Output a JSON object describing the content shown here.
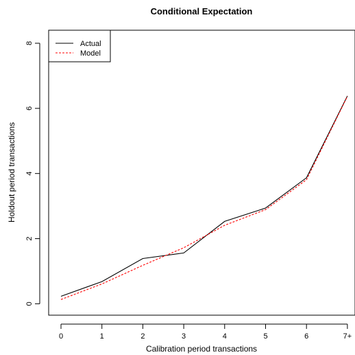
{
  "chart_data": {
    "type": "line",
    "title": "Conditional Expectation",
    "xlabel": "Calibration period transactions",
    "ylabel": "Holdout period transactions",
    "categories": [
      "0",
      "1",
      "2",
      "3",
      "4",
      "5",
      "6",
      "7+"
    ],
    "yticks": [
      0,
      2,
      4,
      6,
      8
    ],
    "ylim": [
      -0.35,
      8.4
    ],
    "grid": false,
    "legend_position": "top-left",
    "series": [
      {
        "name": "Actual",
        "color": "#000000",
        "dash": "solid",
        "values": [
          0.23,
          0.68,
          1.39,
          1.56,
          2.53,
          2.94,
          3.87,
          6.38
        ]
      },
      {
        "name": "Model",
        "color": "#ff0000",
        "dash": "dashed",
        "values": [
          0.13,
          0.61,
          1.18,
          1.72,
          2.41,
          2.89,
          3.81,
          6.37
        ]
      }
    ]
  }
}
